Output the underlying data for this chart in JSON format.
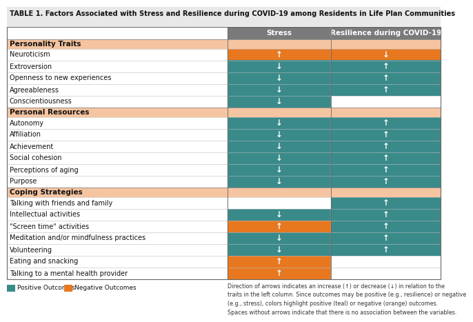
{
  "title": "TABLE 1. Factors Associated with Stress and Resilience during COVID-19 among Residents in Life Plan Communities",
  "col_headers": [
    "Stress",
    "Resilience during COVID-19"
  ],
  "header_gray": "#7a7a7a",
  "section_bg_color": "#f5c4a0",
  "teal": "#3a8a8a",
  "orange": "#e87820",
  "white": "#ffffff",
  "title_bg": "#e8e8e8",
  "rows": [
    {
      "section": "Personality Traits"
    },
    {
      "label": "Neuroticism",
      "s_arrow": "up",
      "s_color": "orange",
      "r_arrow": "down",
      "r_color": "orange"
    },
    {
      "label": "Extroversion",
      "s_arrow": "down",
      "s_color": "teal",
      "r_arrow": "up",
      "r_color": "teal"
    },
    {
      "label": "Openness to new experiences",
      "s_arrow": "down",
      "s_color": "teal",
      "r_arrow": "up",
      "r_color": "teal"
    },
    {
      "label": "Agreeableness",
      "s_arrow": "down",
      "s_color": "teal",
      "r_arrow": "up",
      "r_color": "teal"
    },
    {
      "label": "Conscientiousness",
      "s_arrow": "down",
      "s_color": "teal",
      "r_arrow": null,
      "r_color": "white"
    },
    {
      "section": "Personal Resources"
    },
    {
      "label": "Autonomy",
      "s_arrow": "down",
      "s_color": "teal",
      "r_arrow": "up",
      "r_color": "teal"
    },
    {
      "label": "Affiliation",
      "s_arrow": "down",
      "s_color": "teal",
      "r_arrow": "up",
      "r_color": "teal"
    },
    {
      "label": "Achievement",
      "s_arrow": "down",
      "s_color": "teal",
      "r_arrow": "up",
      "r_color": "teal"
    },
    {
      "label": "Social cohesion",
      "s_arrow": "down",
      "s_color": "teal",
      "r_arrow": "up",
      "r_color": "teal"
    },
    {
      "label": "Perceptions of aging",
      "s_arrow": "down",
      "s_color": "teal",
      "r_arrow": "up",
      "r_color": "teal"
    },
    {
      "label": "Purpose",
      "s_arrow": "down",
      "s_color": "teal",
      "r_arrow": "up",
      "r_color": "teal"
    },
    {
      "section": "Coping Strategies"
    },
    {
      "label": "Talking with friends and family",
      "s_arrow": null,
      "s_color": "white",
      "r_arrow": "up",
      "r_color": "teal"
    },
    {
      "label": "Intellectual activities",
      "s_arrow": "down",
      "s_color": "teal",
      "r_arrow": "up",
      "r_color": "teal"
    },
    {
      "label": "\"Screen time\" activities",
      "s_arrow": "up",
      "s_color": "orange",
      "r_arrow": "up",
      "r_color": "teal"
    },
    {
      "label": "Meditation and/or mindfulness practices",
      "s_arrow": "down",
      "s_color": "teal",
      "r_arrow": "up",
      "r_color": "teal"
    },
    {
      "label": "Volunteering",
      "s_arrow": "down",
      "s_color": "teal",
      "r_arrow": "up",
      "r_color": "teal"
    },
    {
      "label": "Eating and snacking",
      "s_arrow": "up",
      "s_color": "orange",
      "r_arrow": null,
      "r_color": "white"
    },
    {
      "label": "Talking to a mental health provider",
      "s_arrow": "up",
      "s_color": "orange",
      "r_arrow": null,
      "r_color": "white"
    }
  ],
  "legend_teal_label": "Positive Outcomes",
  "legend_orange_label": "Negative Outcomes",
  "footnote": "Direction of arrows indicates an increase (↑) or decrease (↓) in relation to the\ntraits in the left column. Since outcomes may be positive (e.g., resilience) or negative\n(e.g., stress), colors highlight positive (teal) or negative (orange) outcomes.\nSpaces without arrows indicate that there is no association between the variables."
}
